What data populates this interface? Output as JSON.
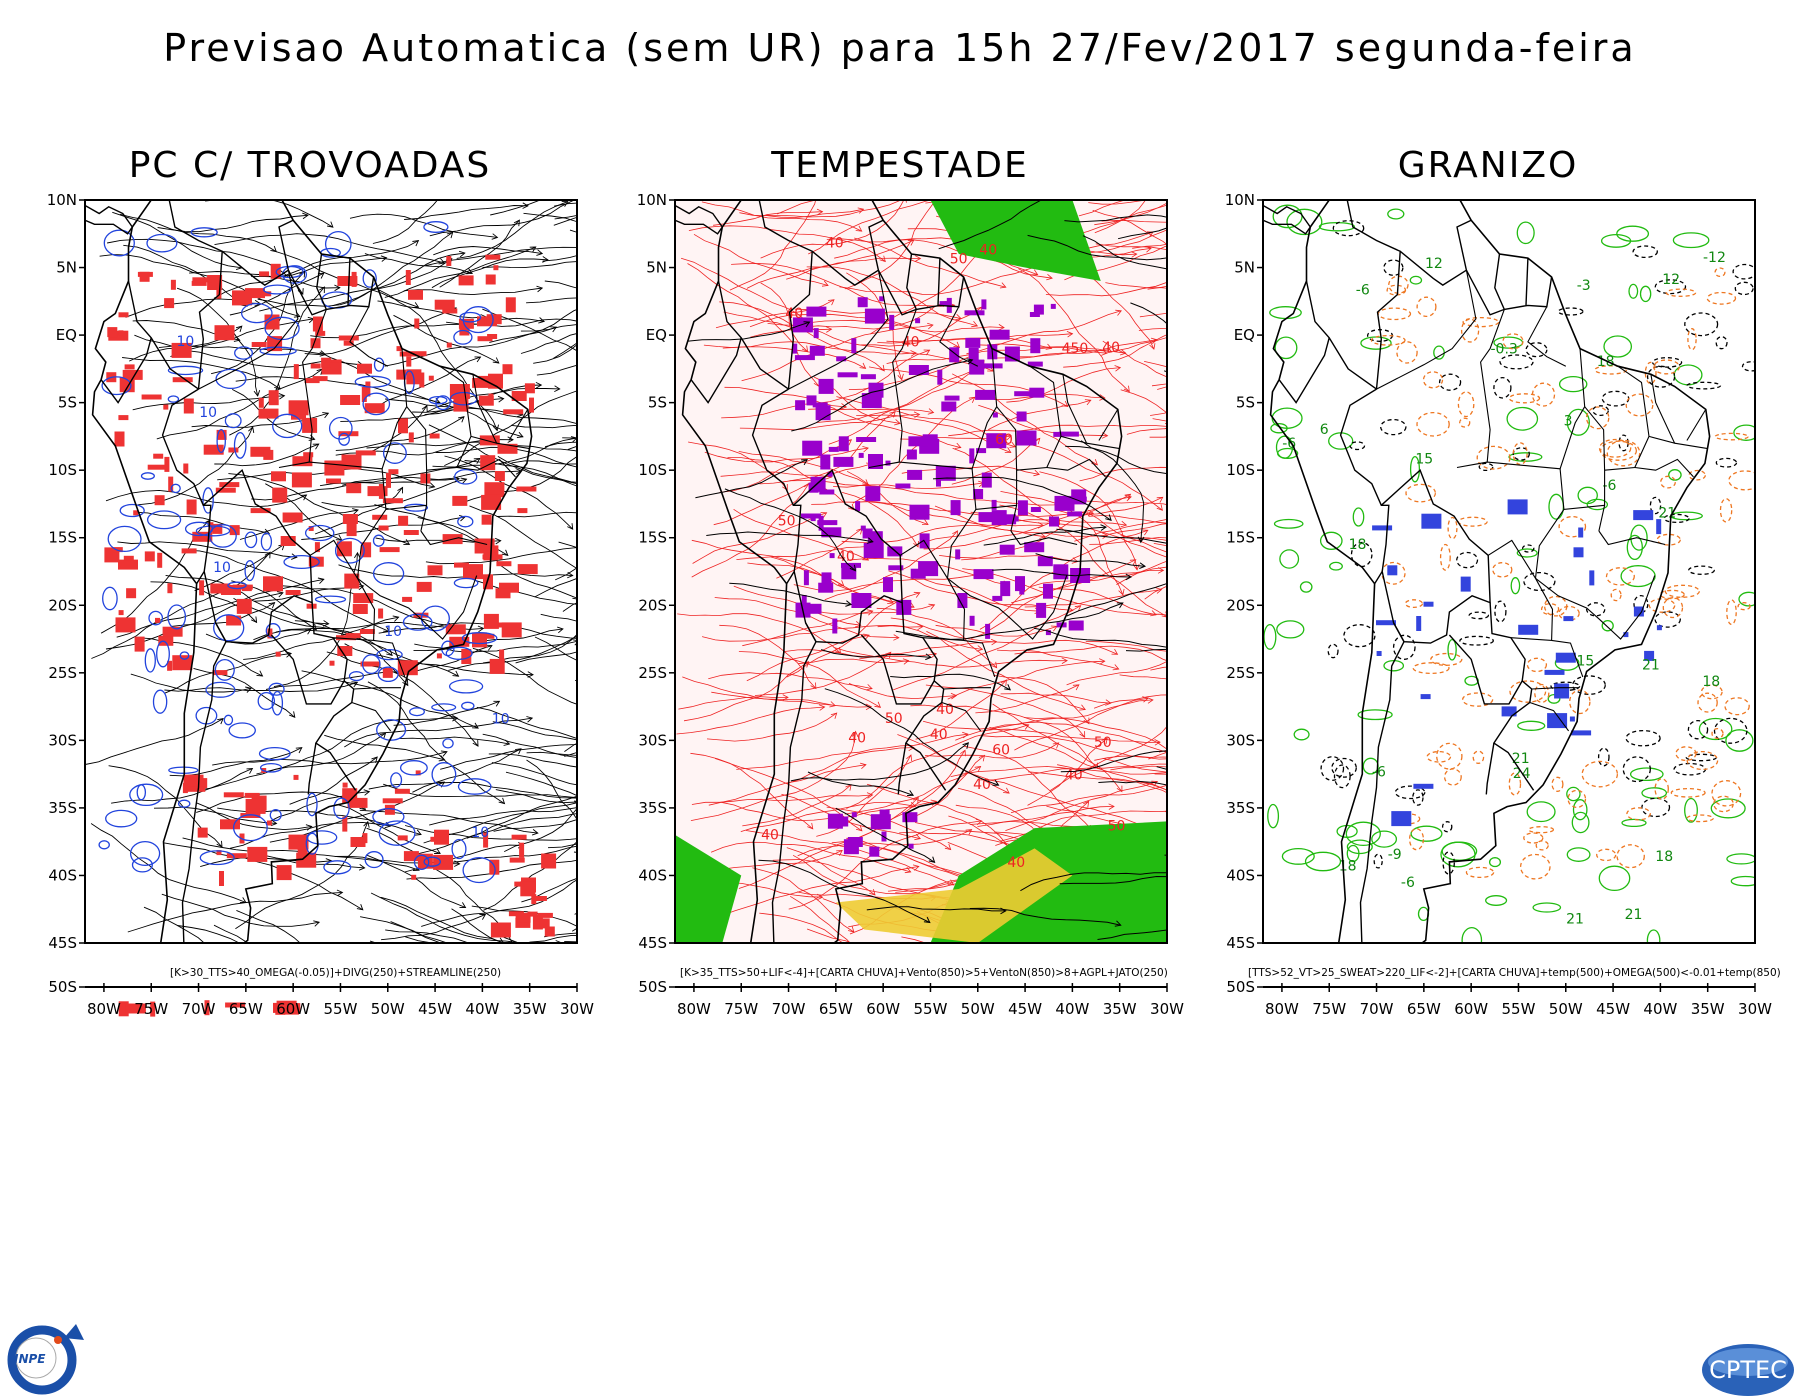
{
  "title": "Previsao Automatica (sem UR) para 15h 27/Fev/2017 segunda-feira",
  "lat_labels": [
    "10N",
    "5N",
    "EQ",
    "5S",
    "10S",
    "15S",
    "20S",
    "25S",
    "30S",
    "35S",
    "40S",
    "45S",
    "50S"
  ],
  "lon_labels": [
    "80W",
    "75W",
    "70W",
    "65W",
    "60W",
    "55W",
    "50W",
    "45W",
    "40W",
    "35W",
    "30W"
  ],
  "panels": [
    {
      "title": "PC C/ TROVOADAS",
      "caption": "[K>30_TTS>40_OMEGA(-0.05)]+DIVG(250)+STREAMLINE(250)",
      "contour_labels": [
        "10",
        "10",
        "10",
        "10",
        "10",
        "10"
      ],
      "colors": {
        "fill": "#ee3333",
        "contour": "#2244dd",
        "stream": "#000000"
      }
    },
    {
      "title": "TEMPESTADE",
      "caption": "[K>35_TTS>50+LIF<-4]+[CARTA CHUVA]+Vento(850)>5+VentoN(850)>8+AGPL+JATO(250)",
      "contour_labels": [
        "40",
        "50",
        "40",
        "50",
        "60",
        "60",
        "40",
        "50",
        "40",
        "40",
        "50",
        "40",
        "40",
        "40",
        "50",
        "40",
        "40",
        "450",
        "40",
        "40",
        "40"
      ],
      "colors": {
        "fill": "#9900cc",
        "contour": "#ee2222",
        "green": "#22bb11",
        "yellow": "#eecc33"
      }
    },
    {
      "title": "GRANIZO",
      "caption": "[TTS>52_VT>25_SWEAT>220_LIF<-2]+[CARTA CHUVA]+temp(500)+OMEGA(500)<-0.01+temp(850)",
      "contour_labels": [
        "18",
        "21",
        "24",
        "18",
        "21",
        "15",
        "12",
        "18",
        "21",
        "21",
        "15",
        "12",
        "-6",
        "-6",
        "-6",
        "-6",
        "-6",
        "-9",
        "-3",
        "-0.3",
        "6",
        "21",
        "18",
        "18",
        "-12",
        "3"
      ],
      "colors": {
        "fill": "#3344dd",
        "green": "#22bb11",
        "dashed": "#000000",
        "orange": "#ee7722"
      }
    }
  ],
  "logos": {
    "left": "INPE",
    "right": "CPTEC"
  }
}
